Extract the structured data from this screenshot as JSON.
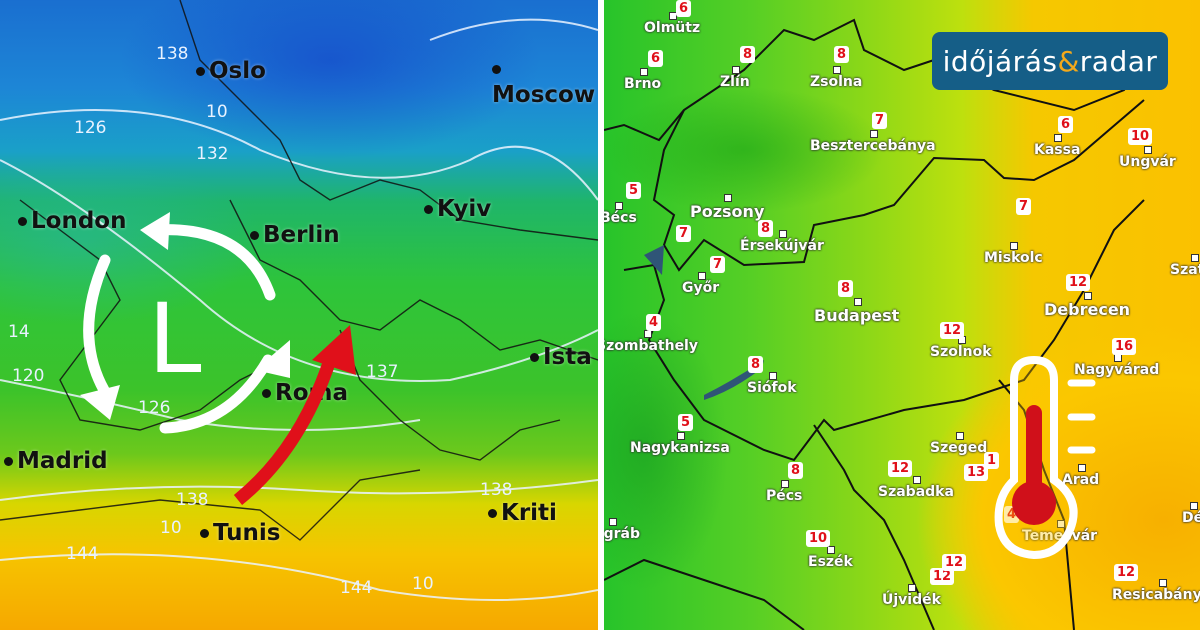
{
  "left_map": {
    "cities": [
      "Oslo",
      "Moscow",
      "London",
      "Berlin",
      "Kyiv",
      "Madrid",
      "Roma",
      "Tunis",
      "Kriti",
      "Ista"
    ],
    "contour_labels": [
      "138",
      "10",
      "132",
      "126",
      "14",
      "120",
      "126",
      "138",
      "10",
      "144",
      "137",
      "138",
      "144",
      "10"
    ],
    "low_pressure_symbol": "L",
    "icons": [
      "cyclone-rotation-arrows-icon",
      "warm-air-flow-arrow-icon"
    ],
    "colors": {
      "warm_arrow": "#e0101a",
      "cold": "#1a6fd0",
      "warm": "#f6c400"
    }
  },
  "right_map": {
    "logo": {
      "part1": "időjárás",
      "amp": "&",
      "part2": "radar"
    },
    "cities": [
      {
        "name": "Olmütz",
        "temp": "6"
      },
      {
        "name": "Brno",
        "temp": "6"
      },
      {
        "name": "Zlín",
        "temp": "8"
      },
      {
        "name": "Zsolna",
        "temp": "8"
      },
      {
        "name": "Besztercebánya",
        "temp": "7"
      },
      {
        "name": "Kassa",
        "temp": "6"
      },
      {
        "name": "Ungvár",
        "temp": "10"
      },
      {
        "name": "Bécs",
        "temp": "5"
      },
      {
        "name": "Pozsony",
        "temp": "7"
      },
      {
        "name": "Érsekújvár",
        "temp": "8"
      },
      {
        "name": "Miskolc",
        "temp": "7"
      },
      {
        "name": "Győr",
        "temp": "7"
      },
      {
        "name": "Budapest",
        "temp": "8"
      },
      {
        "name": "Debrecen",
        "temp": "12"
      },
      {
        "name": "Szatm",
        "temp": ""
      },
      {
        "name": "Szombathely",
        "temp": "4"
      },
      {
        "name": "Szolnok",
        "temp": "12"
      },
      {
        "name": "Nagyvárad",
        "temp": "16"
      },
      {
        "name": "Siófok",
        "temp": "8"
      },
      {
        "name": "Nagykanizsa",
        "temp": "5"
      },
      {
        "name": "Szeged",
        "temp": "13"
      },
      {
        "name": "Szabadka",
        "temp": "12"
      },
      {
        "name": "Pécs",
        "temp": "8"
      },
      {
        "name": "Arad",
        "temp": "1"
      },
      {
        "name": "Temesvár",
        "temp": "4"
      },
      {
        "name": "Eszék",
        "temp": "10"
      },
      {
        "name": "Újvidék",
        "temp": "12"
      },
      {
        "name": "Resicabánya",
        "temp": "12"
      },
      {
        "name": "Dé",
        "temp": ""
      },
      {
        "name": "Zágráb",
        "temp": ""
      }
    ],
    "extra_temps": [
      "12"
    ],
    "icons": [
      "thermometer-icon"
    ],
    "colors": {
      "thermometer": "#d0101a",
      "logo_bg": "#155e87",
      "logo_amp": "#f3a91b"
    }
  }
}
